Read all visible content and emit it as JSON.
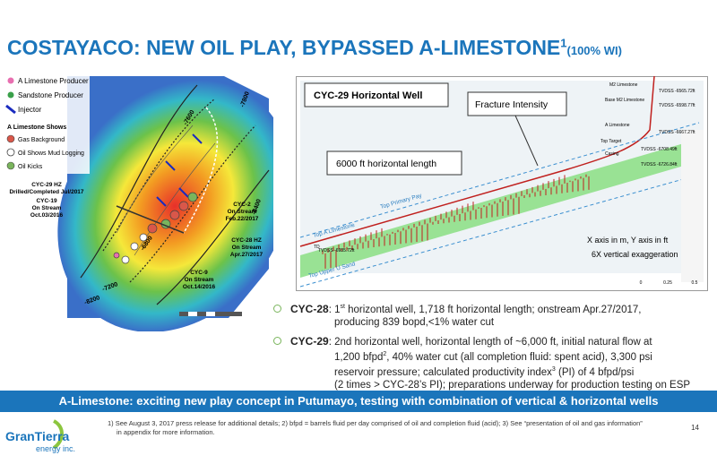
{
  "header": {
    "title": "COSTAYACO: NEW OIL PLAY, BYPASSED A-LIMESTONE",
    "title_sup": "1",
    "title_note": "(100% WI)"
  },
  "map": {
    "legend": [
      "A Limestone Producer",
      "Sandstone Producer",
      "Injector"
    ],
    "shows_title": "A Limestone Shows",
    "shows": [
      "Gas Background",
      "Oil Shows Mud Logging",
      "Oil Kicks"
    ],
    "wells": [
      [
        "CYC-29 HZ",
        "Drilled/Completed Jul/2017"
      ],
      [
        "CYC-19",
        "On Stream",
        "Oct.03/2016"
      ],
      [
        "CYC-2",
        "On Stream",
        "Feb.22/2017"
      ],
      [
        "CYC-28 HZ",
        "On Stream",
        "Apr.27/2017"
      ],
      [
        "CYC-9",
        "On Stream",
        "Oct.14/2016"
      ]
    ],
    "contours": [
      "-7600",
      "-7800",
      "-6800",
      "-7200",
      "-8200",
      "-8400"
    ]
  },
  "section": {
    "title": "CYC-29 Horizontal Well",
    "fracture": "Fracture Intensity",
    "length": "6000 ft horizontal length",
    "axes_note": "X axis in m, Y axis in ft",
    "exaggeration": "6X vertical exaggeration",
    "horizons": [
      "Top A Limestone",
      "Top Primary Pay",
      "Top Upper U Sand"
    ],
    "markers": [
      "M2 Limestone",
      "TVDSS -6565.72ft",
      "Base M2 Limestone",
      "TVDSS -6598.77ft",
      "A Limestone",
      "TVDSS -6667.27ft",
      "Top Target",
      "TVDSS -6708.49ft",
      "Casing",
      "TVDSS -6726.84ft",
      "TD",
      "TVDSS -6935.72ft"
    ],
    "scale": [
      "0",
      "0.25",
      "0.5"
    ]
  },
  "bullets": [
    {
      "label": "CYC-28",
      "lines": [
        [
          ": 1",
          {
            "sup": "st"
          },
          " horizontal well, 1,718 ft horizontal length; onstream Apr.27/2017,"
        ],
        [
          "producing 839 bopd,<1% water cut"
        ]
      ]
    },
    {
      "label": "CYC-29",
      "lines": [
        [
          ": 2nd horizontal well, horizontal length of ~6,000 ft, initial natural flow at"
        ],
        [
          "1,200 bfpd",
          {
            "sup": "2"
          },
          ", 40% water cut (all completion fluid: spent acid), 3,300 psi"
        ],
        [
          "reservoir pressure; calculated productivity index",
          {
            "sup": "3"
          },
          " (PI) of 4 bfpd/psi"
        ],
        [
          "(2 times > CYC-28’s PI); preparations underway for production testing on ESP"
        ]
      ]
    }
  ],
  "banner": "A-Limestone: exciting new play concept in Putumayo, testing with combination of vertical & horizontal wells",
  "footer": {
    "notes": [
      "1) See August 3, 2017 press release for additional details; 2) bfpd = barrels fluid per day comprised of oil and completion fluid (acid); 3) See “presentation of oil and gas information”",
      "in appendix for more information."
    ],
    "page": "14",
    "logo": [
      "GranTierra",
      "energy inc."
    ]
  }
}
